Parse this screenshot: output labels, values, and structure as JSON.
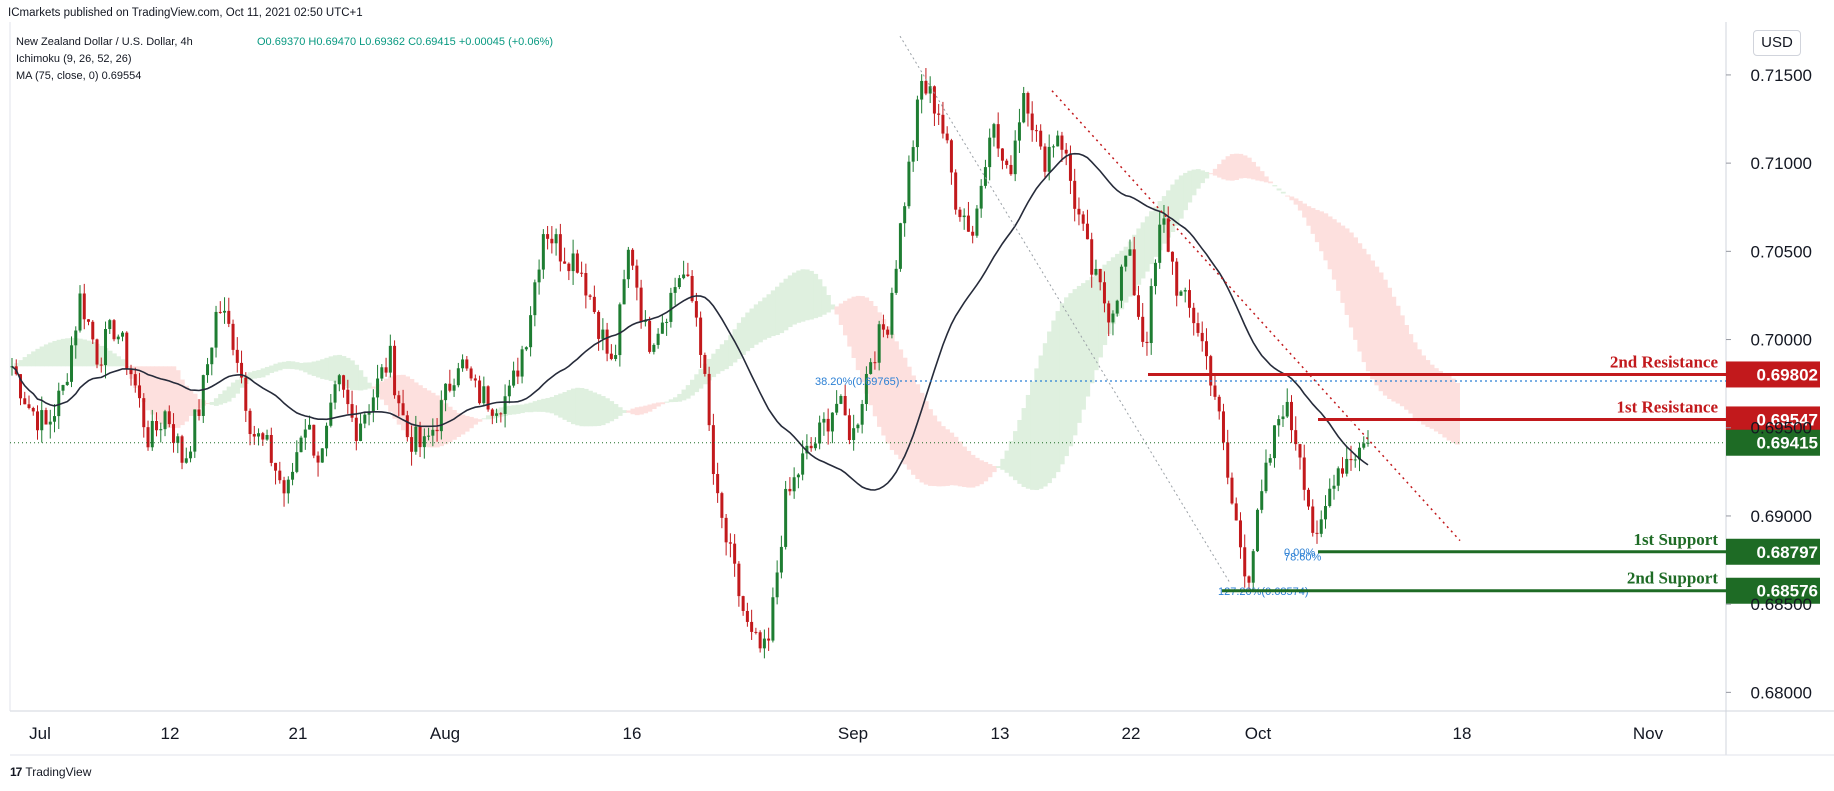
{
  "header": {
    "publisher": "ICmarkets published on TradingView.com, Oct 11, 2021 02:50 UTC+1"
  },
  "legend": {
    "symbol": "New Zealand Dollar / U.S. Dollar, 4h",
    "ohlc": "O0.69370  H0.69470  L0.69362  C0.69415  +0.00045 (+0.06%)",
    "ichimoku": "Ichimoku (9, 26, 52, 26)",
    "ma": "MA (75, close, 0)  0.69554"
  },
  "currency_button": "USD",
  "footer": {
    "brand_logo": "17",
    "brand_text": "TradingView"
  },
  "colors": {
    "up": "#1e7d32",
    "down": "#c2191c",
    "resistance": "#c2191c",
    "support": "#1e6b25",
    "last_price": "#1e6b25",
    "ma": "#262b3a",
    "cloud_bull": "#dff0df",
    "cloud_bear": "#fde0de",
    "fib": "#2a7fd4"
  },
  "chart_data": {
    "type": "candlestick",
    "symbol": "NZDUSD",
    "timeframe": "4h",
    "ylim": [
      0.679,
      0.718
    ],
    "y_ticks": [
      "0.71500",
      "0.71000",
      "0.70500",
      "0.70000",
      "0.69500",
      "0.69000",
      "0.68500",
      "0.68000"
    ],
    "x_ticks": [
      "Jul",
      "12",
      "21",
      "Aug",
      "16",
      "Sep",
      "13",
      "22",
      "Oct",
      "18",
      "Nov"
    ],
    "close_anchors": [
      [
        0.6985,
        0.6962,
        0.695,
        0.6972,
        0.7025,
        0.699,
        0.7008,
        0.698,
        0.6942,
        0.696,
        0.693,
        0.6965,
        0.702,
        0.6998,
        0.6948,
        0.6936,
        0.691,
        0.6956,
        0.693,
        0.6975,
        0.695,
        0.6968,
        0.699,
        0.6946,
        0.6938,
        0.696,
        0.699,
        0.697,
        0.6965,
        0.6968,
        0.7005,
        0.7065,
        0.705,
        0.7045,
        0.7015,
        0.6982,
        0.7055,
        0.6998,
        0.7015,
        0.704,
        0.701,
        0.691,
        0.687,
        0.683,
        0.682,
        0.6905,
        0.693,
        0.6945,
        0.6965,
        0.6945,
        0.699,
        0.701,
        0.708,
        0.7145,
        0.713,
        0.708,
        0.706,
        0.7125,
        0.709,
        0.7145,
        0.71,
        0.712,
        0.7075,
        0.7035,
        0.7015,
        0.705,
        0.6995,
        0.707,
        0.7025,
        0.701,
        0.6975,
        0.691,
        0.6865,
        0.692,
        0.6965,
        0.694,
        0.688,
        0.6925,
        0.6935,
        0.69415
      ]
    ],
    "ma": {
      "label": "MA (75, close, 0)",
      "value": 0.69554
    },
    "levels": [
      {
        "name": "2nd Resistance",
        "value": "0.69802",
        "kind": "resistance"
      },
      {
        "name": "1st Resistance",
        "value": "0.69547",
        "kind": "resistance"
      },
      {
        "name": "1st Support",
        "value": "0.68797",
        "kind": "support"
      },
      {
        "name": "2nd Support",
        "value": "0.68576",
        "kind": "support"
      }
    ],
    "last_price": "0.69415",
    "fib_labels": [
      "38.20%(0.69765)",
      "127.20%(0.68574)",
      "0.00%",
      "78.60%"
    ]
  }
}
